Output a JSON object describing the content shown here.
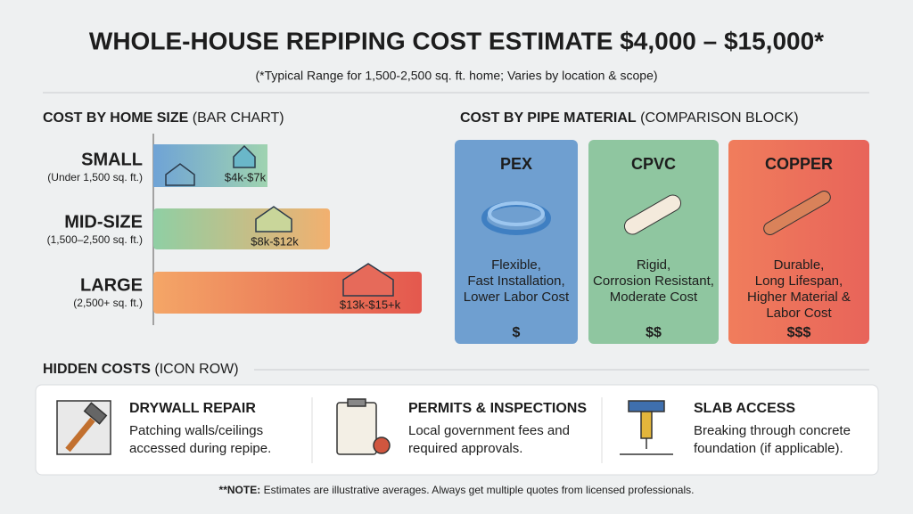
{
  "header": {
    "title": "WHOLE-HOUSE REPIPING COST ESTIMATE $4,000 – $15,000*",
    "subtitle": "(*Typical Range for 1,500-2,500 sq. ft. home; Varies by location & scope)"
  },
  "home_size": {
    "heading": "COST BY HOME SIZE",
    "note": "(BAR CHART)",
    "rows": [
      {
        "label": "SMALL",
        "detail": "(Under 1,500 sq. ft.)",
        "range": "$4k-$7k"
      },
      {
        "label": "MID-SIZE",
        "detail": "(1,500–2,500 sq. ft.)",
        "range": "$8k-$12k"
      },
      {
        "label": "LARGE",
        "detail": "(2,500+ sq. ft.)",
        "range": "$13k-$15+k"
      }
    ]
  },
  "material": {
    "heading": "COST BY PIPE MATERIAL",
    "note": "(COMPARISON BLOCK)",
    "cards": [
      {
        "name": "PEX",
        "lines": [
          "Flexible,",
          "Fast Installation,",
          "Lower Labor Cost"
        ],
        "cost": "$"
      },
      {
        "name": "CPVC",
        "lines": [
          "Rigid,",
          "Corrosion Resistant,",
          "Moderate Cost"
        ],
        "cost": "$$"
      },
      {
        "name": "COPPER",
        "lines": [
          "Durable,",
          "Long Lifespan,",
          "Higher Material &",
          "Labor Cost"
        ],
        "cost": "$$$"
      }
    ]
  },
  "hidden": {
    "heading": "HIDDEN COSTS",
    "note": "(ICON ROW)",
    "items": [
      {
        "title": "DRYWALL REPAIR",
        "lines": [
          "Patching walls/ceilings",
          "accessed during repipe."
        ]
      },
      {
        "title": "PERMITS & INSPECTIONS",
        "lines": [
          "Local government fees and",
          "required approvals."
        ]
      },
      {
        "title": "SLAB ACCESS",
        "lines": [
          "Breaking through concrete",
          "foundation (if applicable)."
        ]
      }
    ]
  },
  "footnote": {
    "lead": "**NOTE:",
    "text": "Estimates are illustrative averages. Always get multiple quotes from licensed professionals."
  }
}
